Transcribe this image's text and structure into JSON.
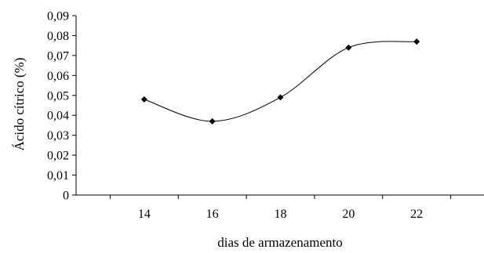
{
  "chart_data": {
    "type": "line",
    "title": "",
    "xlabel": "dias de armazenamento",
    "ylabel": "Ácido cítrico (%)",
    "x": [
      14,
      16,
      18,
      20,
      22
    ],
    "series": [
      {
        "values": [
          0.048,
          0.037,
          0.049,
          0.074,
          0.077
        ]
      }
    ],
    "xlim": [
      12,
      24
    ],
    "ylim": [
      0,
      0.09
    ],
    "xticks": [
      14,
      16,
      18,
      20,
      22
    ],
    "yticks": [
      0,
      0.01,
      0.02,
      0.03,
      0.04,
      0.05,
      0.06,
      0.07,
      0.08,
      0.09
    ],
    "xtick_labels": [
      "14",
      "16",
      "18",
      "20",
      "22"
    ],
    "ytick_labels": [
      "0",
      "0,01",
      "0,02",
      "0,03",
      "0,04",
      "0,05",
      "0,06",
      "0,07",
      "0,08",
      "0,09"
    ],
    "smooth": true,
    "marker": "diamond",
    "grid": false,
    "legend": "none",
    "line_color": "#000000"
  }
}
